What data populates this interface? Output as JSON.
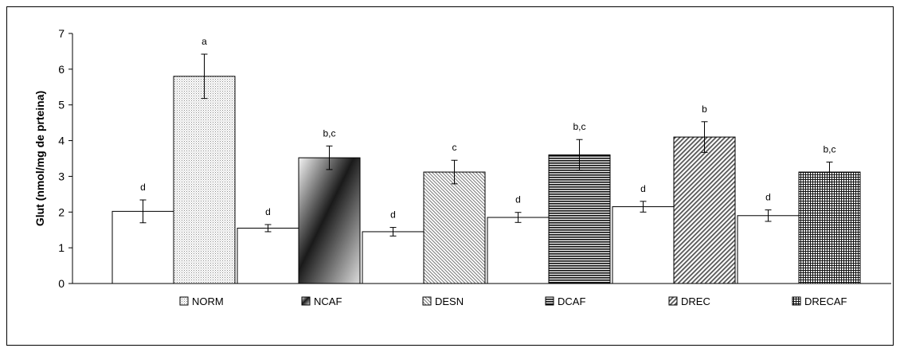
{
  "chart_data": {
    "type": "bar",
    "title": "",
    "xlabel": "",
    "ylabel": "Glut (nmol/mg de prteina)",
    "ylim": [
      0,
      7
    ],
    "yticks": [
      0,
      1,
      2,
      3,
      4,
      5,
      6,
      7
    ],
    "grid": false,
    "legend_position": "bottom",
    "series": [
      {
        "name": "NORM",
        "fill": "dots",
        "values": [
          2.02,
          5.8
        ]
      },
      {
        "name": "NCAF",
        "fill": "gradient",
        "values": [
          1.55,
          3.52
        ]
      },
      {
        "name": "DESN",
        "fill": "fine-dots",
        "values": [
          1.45,
          3.12
        ]
      },
      {
        "name": "DCAF",
        "fill": "horizontal-lines",
        "values": [
          1.85,
          3.6
        ]
      },
      {
        "name": "DREC",
        "fill": "diagonal-lines",
        "values": [
          2.15,
          4.1
        ]
      },
      {
        "name": "DRECAF",
        "fill": "grid",
        "values": [
          1.9,
          3.12
        ]
      }
    ],
    "errors": [
      [
        0.32,
        0.62
      ],
      [
        0.1,
        0.33
      ],
      [
        0.12,
        0.33
      ],
      [
        0.14,
        0.43
      ],
      [
        0.15,
        0.43
      ],
      [
        0.16,
        0.28
      ]
    ],
    "letters": [
      [
        "d",
        "a"
      ],
      [
        "d",
        "b,c"
      ],
      [
        "d",
        "c"
      ],
      [
        "d",
        "b,c"
      ],
      [
        "d",
        "b"
      ],
      [
        "d",
        "b,c"
      ]
    ]
  }
}
